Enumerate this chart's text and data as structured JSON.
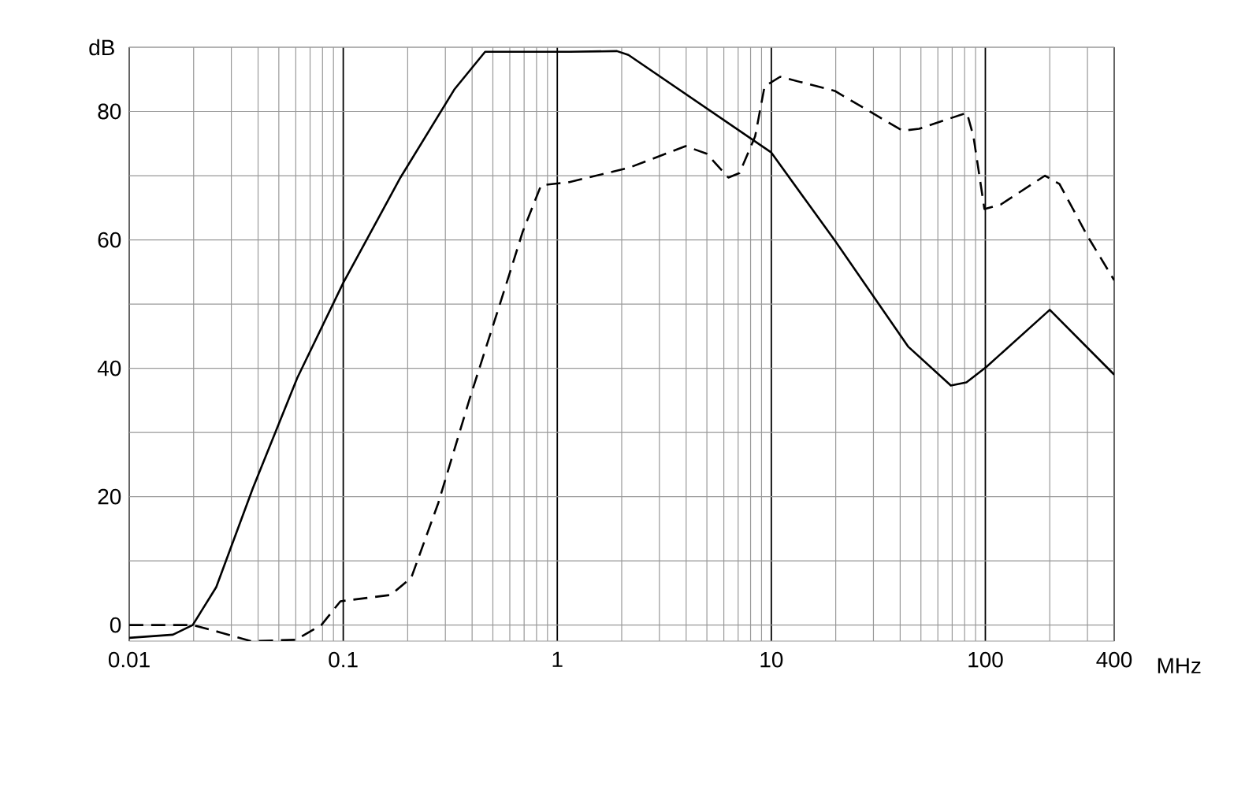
{
  "chart_data": {
    "type": "line",
    "xlabel": "MHz",
    "ylabel": "dB",
    "log": "x",
    "grid": true,
    "marker": "none",
    "xlim": [
      0.01,
      400
    ],
    "xticks": [
      0.01,
      0.1,
      1,
      10,
      100,
      400
    ],
    "ylim": [
      -2.5,
      90
    ],
    "yticks": [
      0,
      {
        "value": 10,
        "label": null
      },
      20,
      {
        "value": 30,
        "label": null
      },
      40,
      {
        "value": 50,
        "label": null
      },
      60,
      {
        "value": 70,
        "label": null
      },
      80,
      {
        "value": 90,
        "label": null
      }
    ],
    "series": [
      {
        "color": "#000000",
        "line_style": "solid",
        "x": [
          0.01,
          0.016,
          0.0198,
          0.0255,
          0.0378,
          0.061,
          0.1,
          0.185,
          0.33,
          0.46,
          1.14,
          1.9,
          2.15,
          10,
          19.8,
          43.5,
          69,
          81.6,
          101,
          200,
          400
        ],
        "values": [
          -2.0,
          -1.5,
          0,
          5.9,
          21.3,
          38.5,
          53.3,
          69.7,
          83.4,
          89.3,
          89.3,
          89.4,
          88.8,
          73.6,
          59.9,
          43.4,
          37.3,
          37.8,
          40.2,
          49.1,
          39
        ]
      },
      {
        "color": "#000000",
        "line_style": "dashed",
        "x": [
          0.01,
          0.0198,
          0.027,
          0.037,
          0.06,
          0.079,
          0.097,
          0.167,
          0.208,
          0.278,
          0.39,
          0.58,
          0.69,
          0.84,
          1.14,
          2.15,
          3.98,
          5.0,
          6.3,
          7.1,
          8.4,
          9.3,
          11.0,
          19.8,
          41,
          49,
          82,
          88,
          99,
          118,
          190,
          222,
          300,
          400
        ],
        "values": [
          0,
          0,
          -1.2,
          -2.5,
          -2.3,
          0,
          3.7,
          4.7,
          7.4,
          19,
          35.3,
          53.3,
          61.3,
          68.5,
          69,
          71.2,
          74.6,
          73.4,
          69.7,
          70.4,
          76.1,
          83.9,
          85.4,
          83.2,
          77,
          77.3,
          79.8,
          76.1,
          64.8,
          65.5,
          70,
          68.7,
          60.6,
          53.7
        ]
      }
    ]
  }
}
